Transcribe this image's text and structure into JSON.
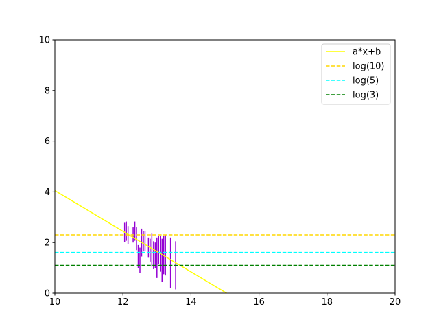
{
  "chart_data": {
    "type": "line",
    "title": "",
    "xlabel": "",
    "ylabel": "",
    "xlim": [
      10,
      20
    ],
    "ylim": [
      0,
      10
    ],
    "x_ticks": [
      "10",
      "12",
      "14",
      "16",
      "18",
      "20"
    ],
    "y_ticks": [
      "0",
      "2",
      "4",
      "6",
      "8",
      "10"
    ],
    "grid": false,
    "legend_position": "top-right",
    "series": [
      {
        "name": "a*x+b",
        "kind": "line",
        "style": "solid",
        "color": "#ffff00",
        "x": [
          10,
          15.05
        ],
        "y": [
          4.05,
          0
        ]
      },
      {
        "name": "log(10)",
        "kind": "hline",
        "style": "dashed",
        "color": "#ffd700",
        "y": 2.303
      },
      {
        "name": "log(5)",
        "kind": "hline",
        "style": "dashed",
        "color": "#00ffff",
        "y": 1.609
      },
      {
        "name": "log(3)",
        "kind": "hline",
        "style": "dashed",
        "color": "#008000",
        "y": 1.099
      }
    ],
    "errorbars": {
      "color": "#9400d3",
      "points": [
        {
          "x": 12.05,
          "y": 2.4,
          "err": 0.38
        },
        {
          "x": 12.1,
          "y": 2.45,
          "err": 0.38
        },
        {
          "x": 12.15,
          "y": 2.3,
          "err": 0.35
        },
        {
          "x": 12.3,
          "y": 2.3,
          "err": 0.3
        },
        {
          "x": 12.35,
          "y": 2.45,
          "err": 0.38
        },
        {
          "x": 12.4,
          "y": 2.15,
          "err": 0.45
        },
        {
          "x": 12.45,
          "y": 1.45,
          "err": 0.45
        },
        {
          "x": 12.5,
          "y": 1.3,
          "err": 0.5
        },
        {
          "x": 12.55,
          "y": 2.0,
          "err": 0.55
        },
        {
          "x": 12.6,
          "y": 2.05,
          "err": 0.4
        },
        {
          "x": 12.65,
          "y": 2.05,
          "err": 0.4
        },
        {
          "x": 12.75,
          "y": 1.8,
          "err": 0.4
        },
        {
          "x": 12.8,
          "y": 1.7,
          "err": 0.45
        },
        {
          "x": 12.85,
          "y": 1.7,
          "err": 0.65
        },
        {
          "x": 12.9,
          "y": 1.5,
          "err": 0.55
        },
        {
          "x": 12.95,
          "y": 1.5,
          "err": 0.5
        },
        {
          "x": 13.0,
          "y": 1.4,
          "err": 0.8
        },
        {
          "x": 13.05,
          "y": 1.7,
          "err": 0.55
        },
        {
          "x": 13.1,
          "y": 1.55,
          "err": 0.7
        },
        {
          "x": 13.15,
          "y": 1.3,
          "err": 0.85
        },
        {
          "x": 13.2,
          "y": 1.5,
          "err": 0.75
        },
        {
          "x": 13.25,
          "y": 1.5,
          "err": 0.8
        },
        {
          "x": 13.4,
          "y": 1.2,
          "err": 1.0
        },
        {
          "x": 13.55,
          "y": 1.1,
          "err": 0.95
        }
      ]
    }
  }
}
